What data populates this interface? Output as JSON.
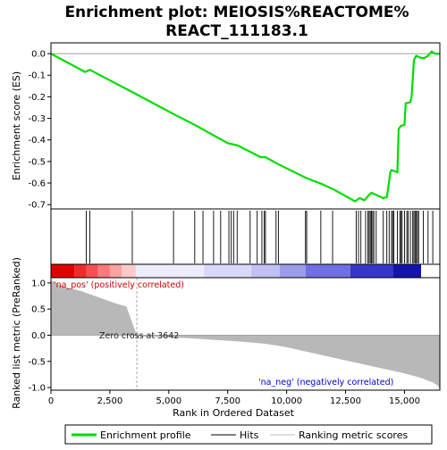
{
  "chart_data": {
    "type": "line",
    "title_line1": "Enrichment plot: MEIOSIS%REACTOME%",
    "title_line2": "REACT_111183.1",
    "xlabel": "Rank in Ordered Dataset",
    "es_ylabel": "Enrichment score (ES)",
    "rank_ylabel_line1": "Ranked list metric (PreRanked)",
    "xlim": [
      0,
      16500
    ],
    "xticks": [
      0,
      2500,
      5000,
      7500,
      10000,
      12500,
      15000
    ],
    "xtick_labels": [
      "0",
      "2,500",
      "5,000",
      "7,500",
      "10,000",
      "12,500",
      "15,000"
    ],
    "es_ylim": [
      -0.72,
      0.05
    ],
    "es_yticks": [
      0.0,
      -0.1,
      -0.2,
      -0.3,
      -0.4,
      -0.5,
      -0.6,
      -0.7
    ],
    "es_ytick_labels": [
      "0.0",
      "-0.1",
      "-0.2",
      "-0.3",
      "-0.4",
      "-0.5",
      "-0.6",
      "-0.7"
    ],
    "rank_ylim": [
      -1.05,
      1.1
    ],
    "rank_yticks": [
      1.0,
      0.5,
      0.0,
      -0.5,
      -1.0
    ],
    "rank_ytick_labels": [
      "1.0",
      "0.5",
      "0.0",
      "-0.5",
      "-1.0"
    ],
    "zero_cross_rank": 3642,
    "zero_cross_label": "Zero cross at 3642",
    "pos_label": "'na_pos' (positively correlated)",
    "neg_label": "'na_neg' (negatively correlated)",
    "hits": [
      1500,
      1650,
      3450,
      5200,
      6100,
      6450,
      6900,
      7200,
      7550,
      7650,
      7750,
      7900,
      8450,
      8750,
      8950,
      9050,
      9100,
      9550,
      9650,
      10800,
      10850,
      11450,
      11950,
      12950,
      13050,
      13150,
      13350,
      13450,
      13500,
      13550,
      13600,
      13650,
      13700,
      13800,
      14100,
      14250,
      14350,
      14450,
      14500,
      14550,
      14700,
      14800,
      14850,
      14900,
      15000,
      15100,
      15150,
      15250,
      15350,
      15400,
      15450,
      15500,
      15550,
      15600,
      15800,
      16000,
      16200
    ],
    "es_curve": {
      "x": [
        0,
        1450,
        1650,
        3400,
        5200,
        6100,
        7500,
        7900,
        8900,
        9100,
        9600,
        10800,
        11500,
        12000,
        12900,
        13100,
        13300,
        13500,
        13600,
        13700,
        14100,
        14250,
        14300,
        14400,
        14450,
        14700,
        14750,
        14850,
        15000,
        15050,
        15250,
        15300,
        15400,
        15500,
        15700,
        15850,
        16000,
        16150,
        16300,
        16500
      ],
      "y": [
        0.0,
        -0.085,
        -0.075,
        -0.175,
        -0.28,
        -0.33,
        -0.415,
        -0.425,
        -0.48,
        -0.48,
        -0.51,
        -0.575,
        -0.605,
        -0.63,
        -0.685,
        -0.67,
        -0.68,
        -0.655,
        -0.645,
        -0.65,
        -0.67,
        -0.665,
        -0.63,
        -0.55,
        -0.54,
        -0.55,
        -0.35,
        -0.335,
        -0.33,
        -0.23,
        -0.225,
        -0.2,
        -0.03,
        -0.01,
        -0.02,
        -0.02,
        -0.01,
        0.01,
        0.0,
        0.0
      ]
    },
    "rank_metric": {
      "x": [
        0,
        300,
        800,
        1300,
        1800,
        2300,
        2800,
        3200,
        3642,
        3700,
        5000,
        6000,
        7000,
        8000,
        9000,
        9500,
        10000,
        10500,
        11000,
        11500,
        12000,
        12500,
        13000,
        13500,
        14000,
        14500,
        15000,
        15500,
        15800,
        16000,
        16200,
        16400,
        16500
      ],
      "y": [
        1.05,
        0.97,
        0.9,
        0.84,
        0.76,
        0.68,
        0.6,
        0.55,
        0.0,
        -0.02,
        -0.04,
        -0.06,
        -0.09,
        -0.12,
        -0.16,
        -0.19,
        -0.23,
        -0.28,
        -0.33,
        -0.38,
        -0.43,
        -0.48,
        -0.53,
        -0.58,
        -0.63,
        -0.68,
        -0.73,
        -0.79,
        -0.83,
        -0.87,
        -0.9,
        -0.96,
        -1.02
      ]
    },
    "colorbar": [
      {
        "from": 0,
        "to": 1000,
        "color": "#e00000"
      },
      {
        "from": 1000,
        "to": 1500,
        "color": "#ee2a2a"
      },
      {
        "from": 1500,
        "to": 2000,
        "color": "#f55050"
      },
      {
        "from": 2000,
        "to": 2500,
        "color": "#f87a7a"
      },
      {
        "from": 2500,
        "to": 3000,
        "color": "#faa0a0"
      },
      {
        "from": 3000,
        "to": 3600,
        "color": "#fcc8c8"
      },
      {
        "from": 3600,
        "to": 6500,
        "color": "#ececfc"
      },
      {
        "from": 6500,
        "to": 8500,
        "color": "#d8d8f8"
      },
      {
        "from": 8500,
        "to": 9700,
        "color": "#c0c0f4"
      },
      {
        "from": 9700,
        "to": 10800,
        "color": "#9c9cec"
      },
      {
        "from": 10800,
        "to": 12700,
        "color": "#7070e0"
      },
      {
        "from": 12700,
        "to": 14500,
        "color": "#3636c8"
      },
      {
        "from": 14500,
        "to": 16500,
        "color": "#1414a8"
      }
    ],
    "legend": [
      {
        "label": "Enrichment profile",
        "color": "#00dd00",
        "kind": "thick-line"
      },
      {
        "label": "Hits",
        "color": "#000000",
        "kind": "thin-line"
      },
      {
        "label": "Ranking metric scores",
        "color": "#bbbbbb",
        "kind": "thin-line"
      }
    ],
    "colors": {
      "es_line": "#00dd00",
      "hit": "#000000",
      "metric_fill": "#b8b8b8",
      "pos_text": "#cc0000",
      "neg_text": "#0000cc",
      "zero_line": "#aaaaaa"
    }
  }
}
